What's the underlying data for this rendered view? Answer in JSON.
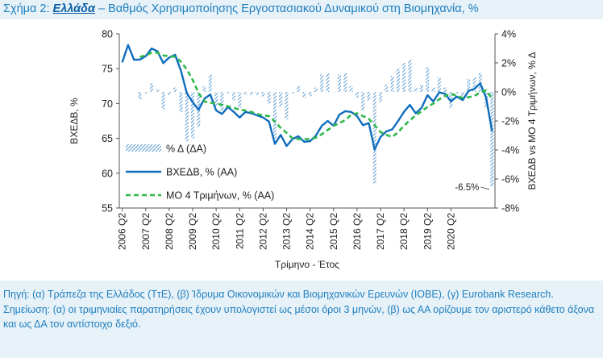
{
  "title": {
    "prefix": "Σχήμα 2: ",
    "country": "Ελλάδα",
    "rest": " – Βαθμός Χρησιμοποίησης Εργοστασιακού Δυναμικού στη Βιομηχανία, %"
  },
  "colors": {
    "accent": "#1f7fbf",
    "line": "#0f6dbd",
    "ma": "#2db84b",
    "bars": "#2f7fc4",
    "background": "#e6f1f8"
  },
  "chart_data": {
    "type": "line",
    "xlabel": "Τρίμηνο - Έτος",
    "ylabel_left": "ΒΧΕΔΒ, %",
    "ylabel_right": "ΒΧΕΔΒ vs ΜΟ 4 Τριμήνων, % Δ",
    "ylim_left": [
      55,
      80
    ],
    "ylim_right": [
      -8,
      4
    ],
    "yticks_left": [
      "55",
      "60",
      "65",
      "70",
      "75",
      "80"
    ],
    "yticks_right": [
      "-8%",
      "-6%",
      "-4%",
      "-2%",
      "0%",
      "2%",
      "4%"
    ],
    "xtick_labels": [
      "2006 Q2",
      "2007 Q2",
      "2008 Q2",
      "2009 Q2",
      "2010 Q2",
      "2011 Q2",
      "2012 Q2",
      "2013 Q2",
      "2014 Q2",
      "2015 Q2",
      "2016 Q2",
      "2017 Q2",
      "2018 Q2",
      "2019 Q2",
      "2020 Q2"
    ],
    "legend_position": "center-left",
    "annotation": "-6.5%",
    "series": [
      {
        "name": "ΒΧΕΔΒ, % (ΑΑ)",
        "axis": "left",
        "style": "line",
        "values": [
          75.9,
          78.4,
          76.3,
          76.3,
          76.8,
          77.9,
          77.5,
          75.8,
          76.6,
          77.0,
          74.7,
          71.5,
          70.2,
          69.1,
          70.7,
          71.3,
          69.0,
          68.5,
          69.5,
          68.8,
          68.0,
          68.8,
          68.6,
          68.3,
          68.0,
          67.4,
          64.2,
          65.5,
          63.9,
          64.9,
          65.3,
          64.5,
          64.6,
          65.4,
          66.8,
          67.5,
          66.8,
          68.4,
          68.9,
          68.8,
          68.2,
          66.9,
          67.2,
          63.4,
          65.2,
          66.0,
          66.3,
          67.5,
          68.8,
          69.8,
          68.6,
          69.4,
          71.2,
          70.3,
          71.6,
          71.4,
          70.3,
          71.0,
          70.5,
          71.8,
          72.1,
          72.9,
          70.8,
          66.0
        ]
      },
      {
        "name": "ΜΟ 4 Τριμήνων, % (ΑΑ)",
        "axis": "left",
        "style": "dashed",
        "values": [
          null,
          null,
          null,
          76.7,
          76.9,
          77.3,
          77.3,
          76.9,
          76.8,
          76.7,
          76.0,
          74.9,
          73.4,
          71.5,
          70.3,
          70.1,
          70.0,
          69.8,
          69.6,
          69.4,
          69.1,
          69.0,
          68.8,
          68.5,
          68.3,
          68.2,
          67.4,
          66.5,
          65.8,
          65.0,
          64.9,
          64.9,
          64.9,
          65.1,
          65.6,
          66.2,
          66.8,
          67.2,
          67.6,
          68.4,
          68.6,
          68.2,
          67.8,
          66.9,
          65.9,
          65.5,
          65.2,
          65.9,
          66.8,
          67.6,
          68.3,
          68.9,
          69.5,
          70.0,
          70.6,
          71.1,
          71.4,
          71.1,
          70.8,
          70.9,
          71.1,
          71.6,
          71.9,
          70.7
        ]
      },
      {
        "name": "% Δ (ΔΑ)",
        "axis": "right",
        "style": "hatched-bar",
        "values": [
          null,
          null,
          null,
          -0.5,
          -0.1,
          0.6,
          0.2,
          -1.2,
          -0.2,
          0.3,
          -1.4,
          -3.4,
          -3.2,
          -2.4,
          0.4,
          1.2,
          -1.0,
          -1.3,
          -0.1,
          -0.6,
          -1.1,
          -0.2,
          -0.2,
          -0.2,
          -0.3,
          -0.8,
          -3.2,
          -1.0,
          -1.9,
          -0.1,
          0.4,
          -0.4,
          -0.3,
          0.3,
          1.2,
          1.3,
          0.0,
          1.2,
          1.3,
          0.4,
          -0.4,
          -1.3,
          -0.6,
          -6.3,
          -0.7,
          0.5,
          1.1,
          1.6,
          2.0,
          2.2,
          0.3,
          0.5,
          1.7,
          0.3,
          1.0,
          0.3,
          -1.1,
          -0.1,
          -0.3,
          0.9,
          1.0,
          1.3,
          -1.1,
          -6.5
        ]
      }
    ]
  },
  "notes": {
    "source": "Πηγή: (α) Τράπεζα της Ελλάδος (ΤτΕ), (β) Ίδρυμα Οικονομικών και Βιομηχανικών Ερευνών (ΙΟΒΕ), (γ) Eurobank Research.",
    "remark": "Σημείωση: (α) οι τριμηνιαίες παρατηρήσεις έχουν υπολογιστεί ως μέσοι όροι 3 μηνών, (β) ως ΑΑ ορίζουμε τον αριστερό κάθετο άξονα και ως ΔΑ τον αντίστοιχο δεξιό."
  }
}
